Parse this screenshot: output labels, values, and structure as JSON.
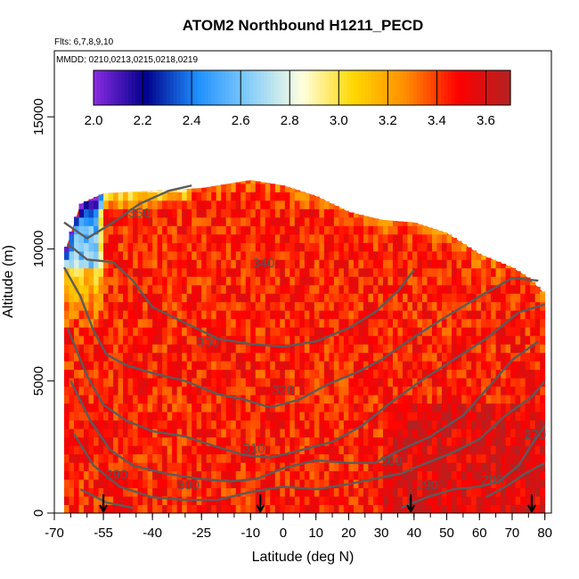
{
  "chart_data": {
    "type": "heatmap",
    "title": "ATOM2 Northbound H1211_PECD",
    "flights_note": "Flts: 6,7,8,9,10",
    "dates_note": "MMDD: 0210,0213,0215,0218,0219",
    "xlabel": "Latitude (deg N)",
    "ylabel": "Altitude (m)",
    "xlim": [
      -70,
      82
    ],
    "ylim": [
      0,
      17500
    ],
    "x_ticks": [
      -70,
      -55,
      -40,
      -25,
      -10,
      0,
      10,
      20,
      30,
      40,
      50,
      60,
      70,
      80
    ],
    "x_ticks_labels": [
      "-70",
      "-55",
      "-40",
      "-25",
      "-10",
      "0",
      "10",
      "20",
      "30",
      "40",
      "50",
      "60",
      "70",
      "80"
    ],
    "y_ticks": [
      0,
      5000,
      10000,
      15000
    ],
    "y_ticks_labels": [
      "0",
      "5000",
      "10000",
      "15000"
    ],
    "colorbar": {
      "min": 2.0,
      "max": 3.7,
      "ticks": [
        2.0,
        2.2,
        2.4,
        2.6,
        2.8,
        3.0,
        3.2,
        3.4,
        3.6
      ],
      "tick_labels": [
        "2.0",
        "2.2",
        "2.4",
        "2.6",
        "2.8",
        "3.0",
        "3.2",
        "3.4",
        "3.6"
      ],
      "colors": [
        "#8a2be2",
        "#00008b",
        "#1e90ff",
        "#87cefa",
        "#ffffe0",
        "#ffd700",
        "#ff8c00",
        "#ff0000",
        "#b22222"
      ]
    },
    "contour_labels": [
      {
        "text": "350",
        "lat": -44,
        "alt": 11200
      },
      {
        "text": "340",
        "lat": -6,
        "alt": 9300
      },
      {
        "text": "330",
        "lat": -23,
        "alt": 6300
      },
      {
        "text": "320",
        "lat": 0,
        "alt": 4500
      },
      {
        "text": "310",
        "lat": -9,
        "alt": 2300
      },
      {
        "text": "300",
        "lat": 33,
        "alt": 1800
      },
      {
        "text": "300",
        "lat": -29,
        "alt": 900
      },
      {
        "text": "290",
        "lat": -51,
        "alt": 1300
      },
      {
        "text": "290",
        "lat": 44,
        "alt": 900
      },
      {
        "text": "280",
        "lat": 64,
        "alt": 1100
      },
      {
        "text": "270",
        "lat": 77,
        "alt": 2800
      }
    ],
    "profile_arrows_lat": [
      -55,
      -7,
      39,
      76
    ],
    "data_extent": [
      {
        "lat": -67,
        "alt": 9800
      },
      {
        "lat": -62,
        "alt": 11700
      },
      {
        "lat": -55,
        "alt": 12100
      },
      {
        "lat": -40,
        "alt": 12200
      },
      {
        "lat": -25,
        "alt": 12300
      },
      {
        "lat": -10,
        "alt": 12600
      },
      {
        "lat": 0,
        "alt": 12400
      },
      {
        "lat": 10,
        "alt": 12000
      },
      {
        "lat": 20,
        "alt": 11400
      },
      {
        "lat": 30,
        "alt": 11100
      },
      {
        "lat": 40,
        "alt": 11000
      },
      {
        "lat": 50,
        "alt": 10600
      },
      {
        "lat": 60,
        "alt": 9800
      },
      {
        "lat": 70,
        "alt": 9300
      },
      {
        "lat": 75,
        "alt": 8900
      },
      {
        "lat": 80,
        "alt": 8300
      }
    ],
    "grid": false
  }
}
